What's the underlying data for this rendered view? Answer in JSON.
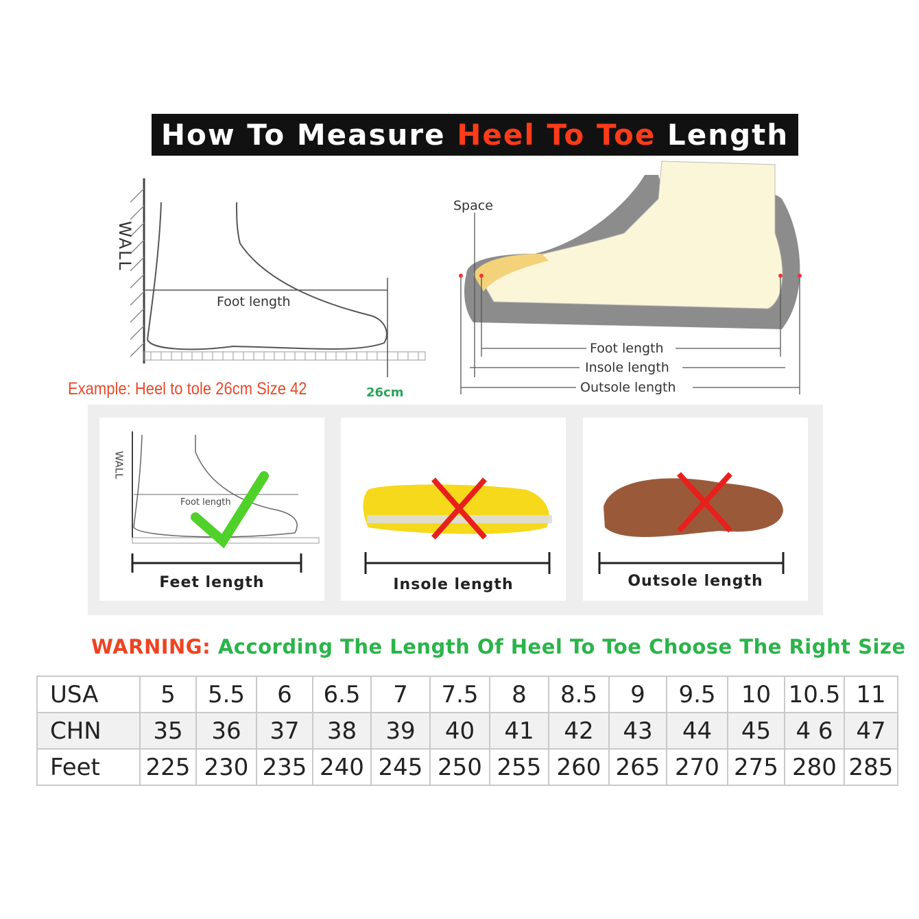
{
  "title": {
    "part1": "How To Measure ",
    "highlight": "Heel To Toe",
    "part2": " Length"
  },
  "left_diagram": {
    "wall": "WALL",
    "foot_length": "Foot length",
    "example": "Example: Heel to tole 26cm Size 42",
    "mark": "26cm"
  },
  "right_diagram": {
    "space": "Space",
    "foot_length": "Foot length",
    "insole_length": "Insole length",
    "outsole_length": "Outsole length"
  },
  "panels": [
    {
      "caption": "Feet length",
      "wall": "WALL",
      "foot_length": "Foot length",
      "verdict": "check"
    },
    {
      "caption": "Insole length",
      "verdict": "cross"
    },
    {
      "caption": "Outsole length",
      "verdict": "cross"
    }
  ],
  "warning": {
    "label": "WARNING:",
    "text": "According The Length Of Heel To Toe Choose The Right Size"
  },
  "size_table": {
    "rows": [
      {
        "header": "USA",
        "values": [
          "5",
          "5.5",
          "6",
          "6.5",
          "7",
          "7.5",
          "8",
          "8.5",
          "9",
          "9.5",
          "10",
          "10.5",
          "11"
        ]
      },
      {
        "header": "CHN",
        "values": [
          "35",
          "36",
          "37",
          "38",
          "39",
          "40",
          "41",
          "42",
          "43",
          "44",
          "45",
          "4 6",
          "47"
        ]
      },
      {
        "header": "Feet",
        "values": [
          "225",
          "230",
          "235",
          "240",
          "245",
          "250",
          "255",
          "260",
          "265",
          "270",
          "275",
          "280",
          "285"
        ]
      }
    ]
  },
  "colors": {
    "highlight": "#ff3b1a",
    "warning": "#ee4422",
    "green": "#2bb44a",
    "cross": "#e8201c"
  }
}
